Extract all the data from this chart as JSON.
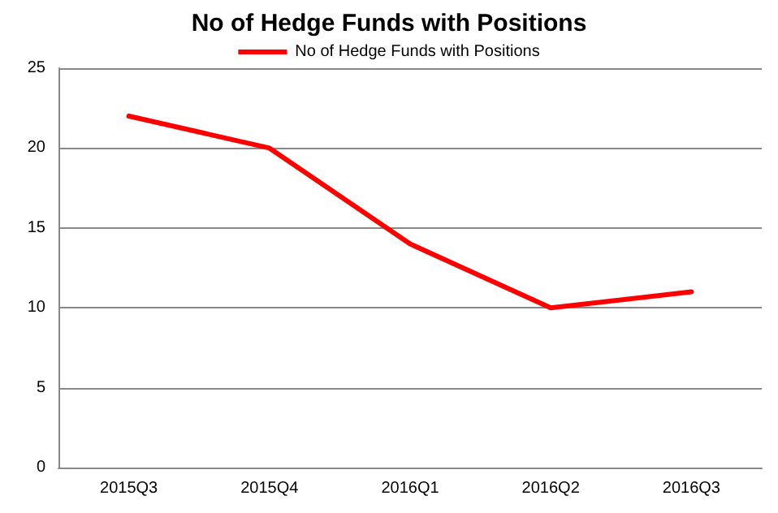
{
  "chart_data": {
    "type": "line",
    "title": "No of Hedge Funds with Positions",
    "categories": [
      "2015Q3",
      "2015Q4",
      "2016Q1",
      "2016Q2",
      "2016Q3"
    ],
    "series": [
      {
        "name": "No of Hedge Funds with Positions",
        "color": "#ff0000",
        "values": [
          22,
          20,
          14,
          10,
          11
        ]
      }
    ],
    "ylim": [
      0,
      25
    ],
    "yticks": [
      0,
      5,
      10,
      15,
      20,
      25
    ],
    "grid": "y",
    "legend": "top",
    "marker": "none",
    "line_style": "solid"
  }
}
